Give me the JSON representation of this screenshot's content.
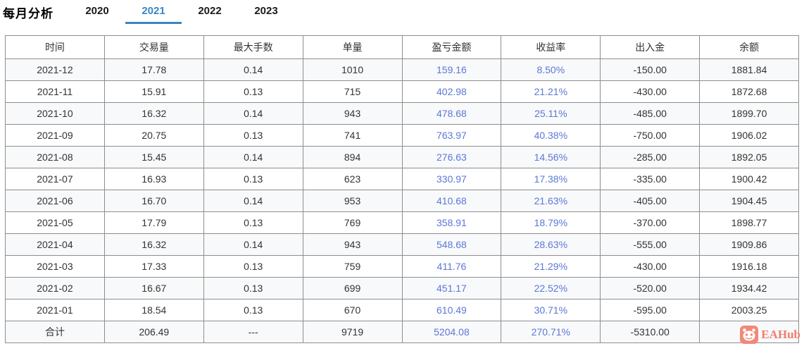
{
  "page": {
    "title": "每月分析"
  },
  "tabs": [
    {
      "label": "2020",
      "active": false
    },
    {
      "label": "2021",
      "active": true
    },
    {
      "label": "2022",
      "active": false
    },
    {
      "label": "2023",
      "active": false
    }
  ],
  "table": {
    "headers": [
      "时间",
      "交易量",
      "最大手数",
      "单量",
      "盈亏金额",
      "收益率",
      "出入金",
      "余额"
    ],
    "blue_columns": [
      4,
      5
    ],
    "rows": [
      [
        "2021-12",
        "17.78",
        "0.14",
        "1010",
        "159.16",
        "8.50%",
        "-150.00",
        "1881.84"
      ],
      [
        "2021-11",
        "15.91",
        "0.13",
        "715",
        "402.98",
        "21.21%",
        "-430.00",
        "1872.68"
      ],
      [
        "2021-10",
        "16.32",
        "0.14",
        "943",
        "478.68",
        "25.11%",
        "-485.00",
        "1899.70"
      ],
      [
        "2021-09",
        "20.75",
        "0.13",
        "741",
        "763.97",
        "40.38%",
        "-750.00",
        "1906.02"
      ],
      [
        "2021-08",
        "15.45",
        "0.14",
        "894",
        "276.63",
        "14.56%",
        "-285.00",
        "1892.05"
      ],
      [
        "2021-07",
        "16.93",
        "0.13",
        "623",
        "330.97",
        "17.38%",
        "-335.00",
        "1900.42"
      ],
      [
        "2021-06",
        "16.70",
        "0.14",
        "953",
        "410.68",
        "21.63%",
        "-405.00",
        "1904.45"
      ],
      [
        "2021-05",
        "17.79",
        "0.13",
        "769",
        "358.91",
        "18.79%",
        "-370.00",
        "1898.77"
      ],
      [
        "2021-04",
        "16.32",
        "0.14",
        "943",
        "548.68",
        "28.63%",
        "-555.00",
        "1909.86"
      ],
      [
        "2021-03",
        "17.33",
        "0.13",
        "759",
        "411.76",
        "21.29%",
        "-430.00",
        "1916.18"
      ],
      [
        "2021-02",
        "16.67",
        "0.13",
        "699",
        "451.17",
        "22.52%",
        "-520.00",
        "1934.42"
      ],
      [
        "2021-01",
        "18.54",
        "0.13",
        "670",
        "610.49",
        "30.71%",
        "-595.00",
        "2003.25"
      ]
    ],
    "total_row": [
      "合计",
      "206.49",
      "---",
      "9719",
      "5204.08",
      "270.71%",
      "-5310.00",
      "---"
    ]
  },
  "watermark": {
    "label": "EAHub"
  },
  "colors": {
    "active_tab": "#3886c6",
    "blue_value": "#5c77d8",
    "border": "#8e8e8e",
    "stripe": "#f8f9fa",
    "watermark": "#f27c6e"
  }
}
